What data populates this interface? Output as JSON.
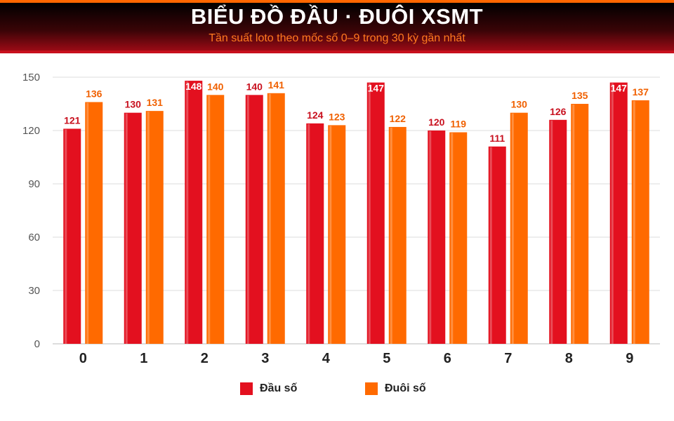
{
  "header": {
    "title": "BIỂU ĐỒ ĐẦU · ĐUÔI XSMT",
    "subtitle": "Tần suất loto theo mốc số 0–9 trong 30 kỳ gần nhất"
  },
  "colors": {
    "dau": "#e3101f",
    "duoi": "#ff6a00",
    "dau_label": "#c8101e",
    "duoi_label": "#f06000",
    "grid": "#dddddd",
    "axis_text": "#555555"
  },
  "chart_data": {
    "type": "bar",
    "categories": [
      "0",
      "1",
      "2",
      "3",
      "4",
      "5",
      "6",
      "7",
      "8",
      "9"
    ],
    "series": [
      {
        "name": "Đầu số",
        "values": [
          121,
          130,
          148,
          140,
          124,
          147,
          120,
          111,
          126,
          147
        ]
      },
      {
        "name": "Đuôi số",
        "values": [
          136,
          131,
          140,
          141,
          123,
          122,
          119,
          130,
          135,
          137
        ]
      }
    ],
    "ylim": [
      0,
      150
    ],
    "yticks": [
      0,
      30,
      60,
      90,
      120,
      150
    ],
    "grid": true,
    "legend": "bottom"
  }
}
